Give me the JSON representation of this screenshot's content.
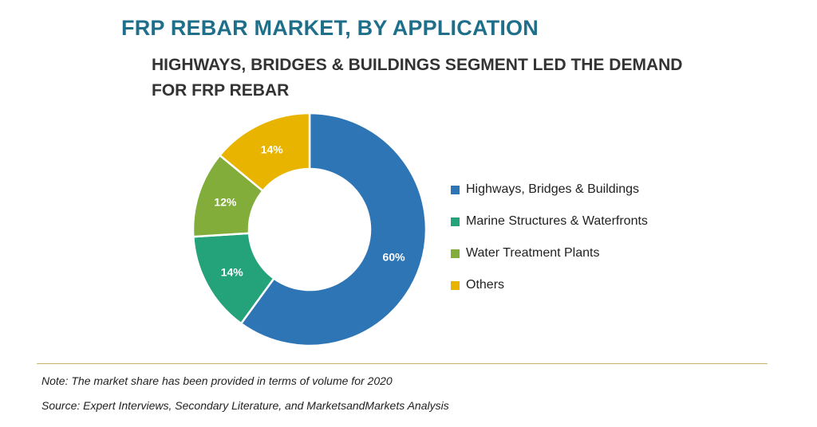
{
  "title": "FRP REBAR MARKET, BY APPLICATION",
  "subtitle": "HIGHWAYS, BRIDGES & BUILDINGS SEGMENT LED THE DEMAND FOR FRP REBAR",
  "chart_data": {
    "type": "pie",
    "donut": true,
    "categories": [
      "Highways, Bridges & Buildings",
      "Marine Structures & Waterfronts",
      "Water Treatment Plants",
      "Others"
    ],
    "values": [
      60,
      14,
      12,
      14
    ],
    "data_labels": [
      "60%",
      "14%",
      "12%",
      "14%"
    ],
    "colors": [
      "#2e75b6",
      "#24a27a",
      "#82ad3a",
      "#e8b400"
    ],
    "legend_position": "right"
  },
  "footer": {
    "note": "Note: The market share has been provided in terms of volume for 2020",
    "source": "Source: Expert Interviews, Secondary Literature, and MarketsandMarkets Analysis"
  }
}
